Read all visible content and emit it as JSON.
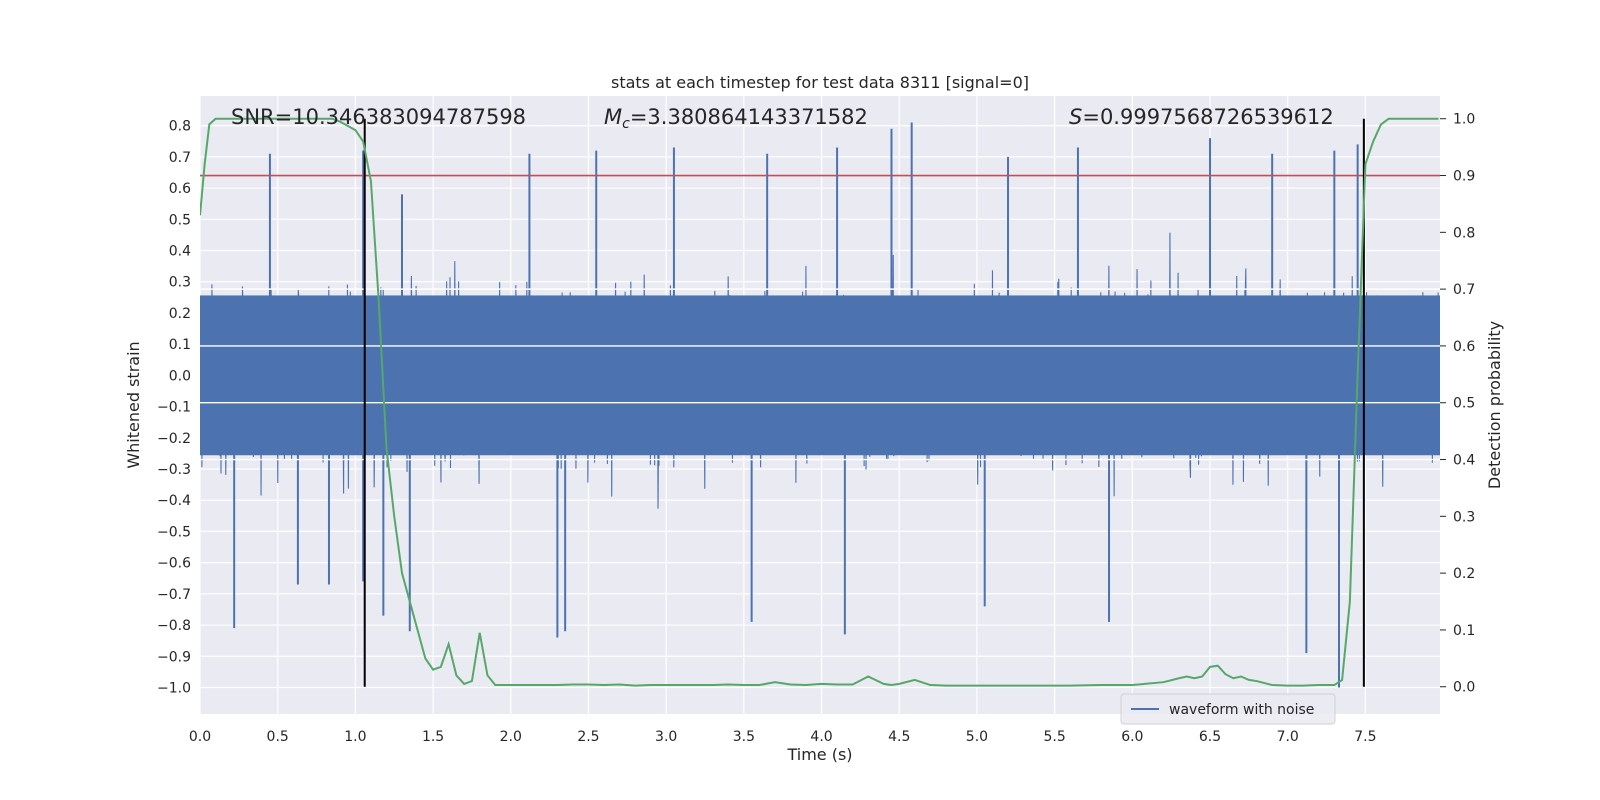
{
  "chart_data": {
    "type": "line",
    "title": "stats at each timestep for test data 8311 [signal=0]",
    "xlabel": "Time (s)",
    "ylabel": "Whitened strain",
    "y2label": "Detection probability",
    "xlim": [
      0.0,
      7.98
    ],
    "ylim": [
      -1.085,
      0.895
    ],
    "y2lim": [
      -0.048,
      1.04
    ],
    "xticks": [
      "0.0",
      "0.5",
      "1.0",
      "1.5",
      "2.0",
      "2.5",
      "3.0",
      "3.5",
      "4.0",
      "4.5",
      "5.0",
      "5.5",
      "6.0",
      "6.5",
      "7.0",
      "7.5"
    ],
    "yticks": [
      "0.8",
      "0.7",
      "0.6",
      "0.5",
      "0.4",
      "0.3",
      "0.2",
      "0.1",
      "0.0",
      "−0.1",
      "−0.2",
      "−0.3",
      "−0.4",
      "−0.5",
      "−0.6",
      "−0.7",
      "−0.8",
      "−0.9",
      "−1.0"
    ],
    "y2ticks": [
      "1.0",
      "0.9",
      "0.8",
      "0.7",
      "0.6",
      "0.5",
      "0.4",
      "0.3",
      "0.2",
      "0.1",
      "0.0"
    ],
    "grid": true,
    "legend": {
      "entries": [
        "waveform with noise"
      ],
      "placement": "lower-right"
    },
    "annotations": {
      "snr": "SNR=10.346383094787598",
      "mc_symbol": "M",
      "mc_sub": "c",
      "mc_value": "=3.380864143371582",
      "s_symbol": "S",
      "s_value": "=0.9997568726539612"
    },
    "threshold": 0.9,
    "vertical_markers": [
      1.06,
      7.49
    ],
    "series": [
      {
        "name": "waveform with noise",
        "axis": "left",
        "style": "dense-noise",
        "envelope_typical": [
          -0.32,
          0.32
        ],
        "extremes_upper": [
          [
            0.45,
            0.71
          ],
          [
            1.05,
            0.72
          ],
          [
            1.3,
            0.58
          ],
          [
            2.12,
            0.71
          ],
          [
            2.55,
            0.72
          ],
          [
            3.05,
            0.73
          ],
          [
            3.65,
            0.71
          ],
          [
            4.1,
            0.73
          ],
          [
            4.45,
            0.79
          ],
          [
            4.58,
            0.81
          ],
          [
            5.2,
            0.7
          ],
          [
            5.65,
            0.73
          ],
          [
            6.5,
            0.76
          ],
          [
            6.9,
            0.71
          ],
          [
            7.3,
            0.72
          ],
          [
            7.45,
            0.74
          ]
        ],
        "extremes_lower": [
          [
            0.22,
            -0.81
          ],
          [
            0.63,
            -0.67
          ],
          [
            0.83,
            -0.67
          ],
          [
            1.05,
            -0.66
          ],
          [
            1.18,
            -0.77
          ],
          [
            1.35,
            -0.82
          ],
          [
            2.3,
            -0.84
          ],
          [
            2.35,
            -0.82
          ],
          [
            3.55,
            -0.79
          ],
          [
            4.15,
            -0.83
          ],
          [
            5.05,
            -0.74
          ],
          [
            5.85,
            -0.79
          ],
          [
            7.12,
            -0.89
          ],
          [
            7.33,
            -1.0
          ]
        ]
      },
      {
        "name": "",
        "axis": "right",
        "color": "#55a868",
        "x": [
          0.0,
          0.03,
          0.06,
          0.1,
          0.15,
          0.2,
          0.3,
          0.4,
          0.5,
          0.6,
          0.7,
          0.8,
          0.85,
          0.9,
          1.0,
          1.05,
          1.1,
          1.15,
          1.2,
          1.25,
          1.3,
          1.35,
          1.4,
          1.45,
          1.5,
          1.55,
          1.6,
          1.65,
          1.7,
          1.75,
          1.8,
          1.85,
          1.9,
          1.95,
          2.0,
          2.1,
          2.2,
          2.3,
          2.4,
          2.5,
          2.6,
          2.7,
          2.8,
          2.9,
          3.0,
          3.1,
          3.2,
          3.3,
          3.4,
          3.5,
          3.6,
          3.7,
          3.8,
          3.9,
          4.0,
          4.1,
          4.2,
          4.3,
          4.4,
          4.45,
          4.5,
          4.6,
          4.7,
          4.8,
          4.9,
          5.0,
          5.2,
          5.4,
          5.6,
          5.8,
          6.0,
          6.2,
          6.3,
          6.35,
          6.4,
          6.45,
          6.5,
          6.55,
          6.6,
          6.65,
          6.7,
          6.75,
          6.8,
          6.9,
          7.0,
          7.1,
          7.2,
          7.3,
          7.35,
          7.4,
          7.45,
          7.5,
          7.55,
          7.6,
          7.65,
          7.7,
          7.8,
          7.97
        ],
        "y": [
          0.83,
          0.92,
          0.99,
          1.0,
          1.0,
          1.0,
          1.0,
          1.0,
          1.0,
          1.0,
          1.0,
          1.0,
          1.0,
          0.995,
          0.98,
          0.96,
          0.89,
          0.68,
          0.42,
          0.3,
          0.2,
          0.15,
          0.1,
          0.05,
          0.03,
          0.035,
          0.075,
          0.02,
          0.005,
          0.01,
          0.095,
          0.02,
          0.003,
          0.003,
          0.003,
          0.003,
          0.003,
          0.003,
          0.004,
          0.004,
          0.003,
          0.004,
          0.002,
          0.003,
          0.003,
          0.003,
          0.003,
          0.003,
          0.004,
          0.003,
          0.003,
          0.008,
          0.004,
          0.003,
          0.005,
          0.004,
          0.004,
          0.018,
          0.005,
          0.003,
          0.005,
          0.012,
          0.003,
          0.002,
          0.002,
          0.002,
          0.002,
          0.002,
          0.002,
          0.003,
          0.003,
          0.008,
          0.015,
          0.018,
          0.015,
          0.018,
          0.035,
          0.037,
          0.022,
          0.015,
          0.018,
          0.012,
          0.01,
          0.003,
          0.002,
          0.002,
          0.003,
          0.003,
          0.012,
          0.15,
          0.55,
          0.92,
          0.96,
          0.99,
          1.0,
          1.0,
          1.0,
          1.0
        ]
      }
    ]
  }
}
